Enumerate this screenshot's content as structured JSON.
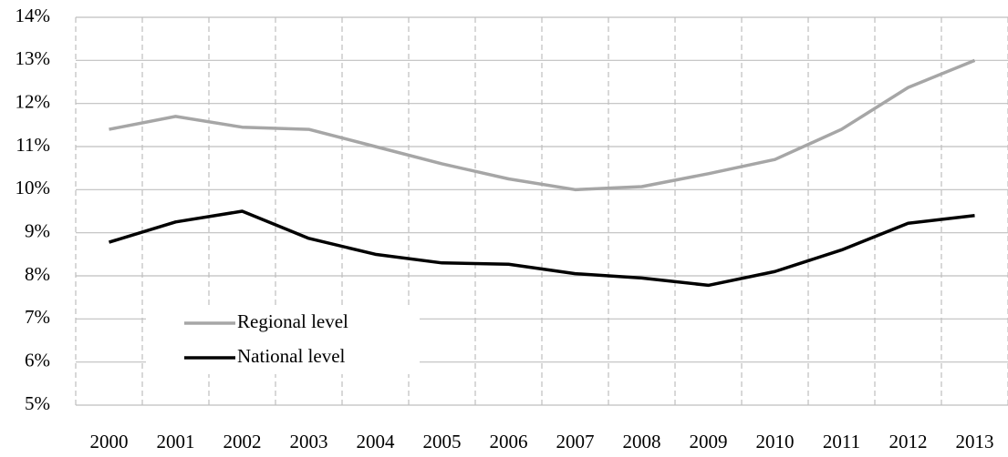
{
  "chart_data": {
    "type": "line",
    "categories": [
      "2000",
      "2001",
      "2002",
      "2003",
      "2004",
      "2005",
      "2006",
      "2007",
      "2008",
      "2009",
      "2010",
      "2011",
      "2012",
      "2013"
    ],
    "series": [
      {
        "name": "Regional level",
        "color": "#a6a6a6",
        "values": [
          11.4,
          11.7,
          11.45,
          11.4,
          11.0,
          10.6,
          10.25,
          10.0,
          10.07,
          10.37,
          10.7,
          11.4,
          12.37,
          13.0
        ]
      },
      {
        "name": "National level",
        "color": "#000000",
        "values": [
          8.78,
          9.25,
          9.5,
          8.87,
          8.5,
          8.3,
          8.27,
          8.05,
          7.95,
          7.78,
          8.1,
          8.6,
          9.22,
          9.4
        ]
      }
    ],
    "ylim": [
      5,
      14
    ],
    "yticks": [
      {
        "value": 5,
        "label": "5%"
      },
      {
        "value": 6,
        "label": "6%"
      },
      {
        "value": 7,
        "label": "7%"
      },
      {
        "value": 8,
        "label": "8%"
      },
      {
        "value": 9,
        "label": "9%"
      },
      {
        "value": 10,
        "label": "10%"
      },
      {
        "value": 11,
        "label": "11%"
      },
      {
        "value": 12,
        "label": "12%"
      },
      {
        "value": 13,
        "label": "13%"
      },
      {
        "value": 14,
        "label": "14%"
      }
    ],
    "grid": true,
    "legend": "lower left"
  }
}
